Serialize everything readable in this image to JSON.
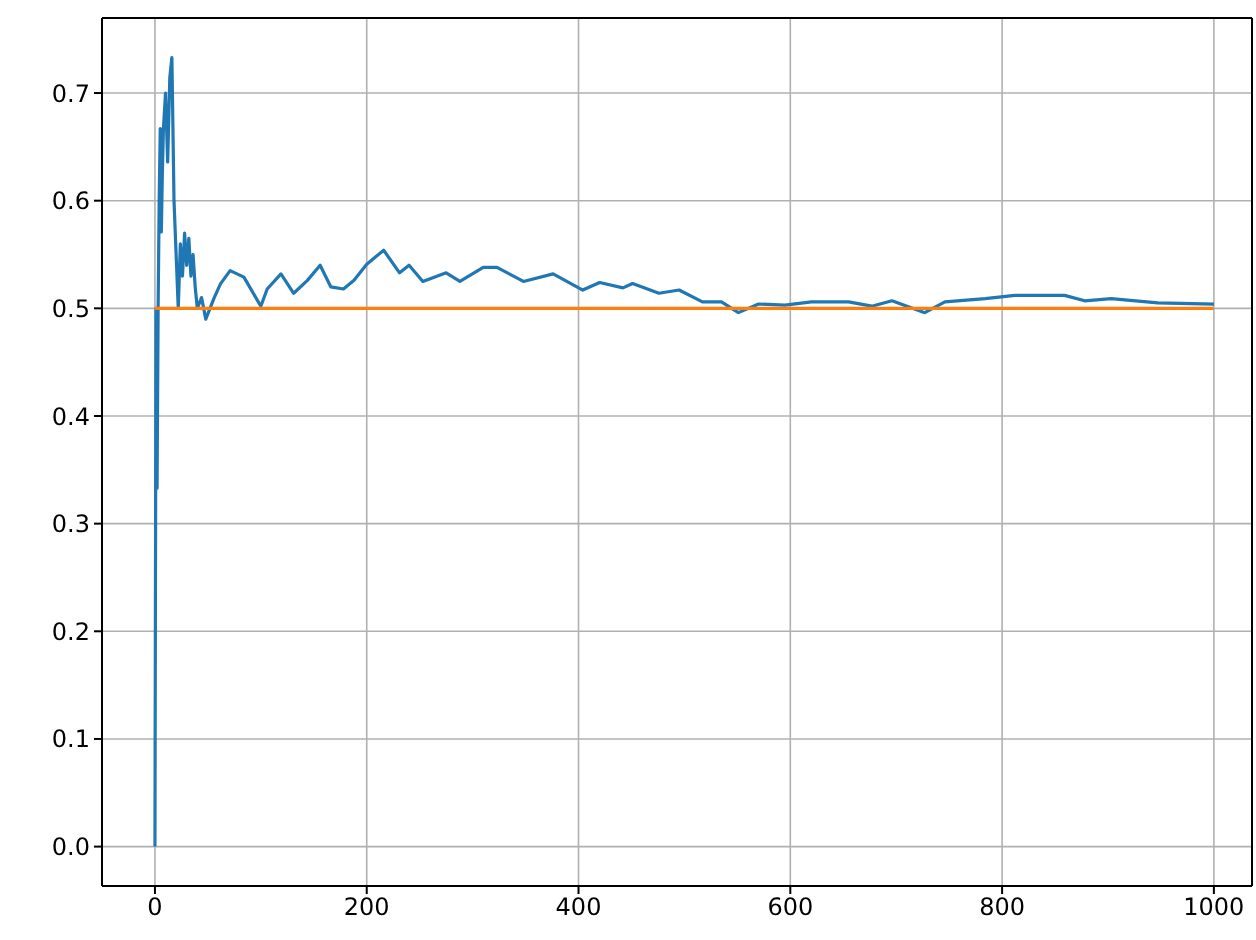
{
  "chart_data": {
    "type": "line",
    "xlim": [
      -50,
      1036
    ],
    "ylim": [
      -0.0366,
      0.7697
    ],
    "xticks": [
      0,
      200,
      400,
      600,
      800,
      1000
    ],
    "yticks": [
      {
        "value": 0,
        "label": "0.0"
      },
      0.1,
      0.2,
      0.3,
      0.4,
      0.5,
      0.6,
      0.7
    ],
    "grid": true,
    "marker": "none",
    "line_style": "solid",
    "series": [
      {
        "color": "#1f77b4",
        "x": [
          0,
          1,
          2,
          3,
          4,
          5,
          6,
          7,
          8,
          10,
          12,
          14,
          16,
          18,
          20,
          22,
          24,
          26,
          28,
          30,
          32,
          34,
          36,
          38,
          40,
          44,
          48,
          52,
          56,
          62,
          71,
          84,
          100,
          106,
          119,
          131,
          144,
          156,
          166,
          178,
          188,
          200,
          216,
          231,
          240,
          253,
          275,
          288,
          310,
          323,
          348,
          376,
          404,
          420,
          442,
          451,
          476,
          495,
          517,
          535,
          551,
          570,
          595,
          620,
          655,
          677,
          696,
          727,
          746,
          784,
          812,
          859,
          878,
          903,
          947,
          1000
        ],
        "values": [
          0,
          0.5,
          0.333,
          0.5,
          0.6,
          0.667,
          0.571,
          0.625,
          0.667,
          0.7,
          0.636,
          0.714,
          0.733,
          0.6,
          0.55,
          0.5,
          0.56,
          0.53,
          0.57,
          0.54,
          0.565,
          0.53,
          0.55,
          0.52,
          0.5,
          0.51,
          0.49,
          0.5,
          0.51,
          0.523,
          0.535,
          0.529,
          0.502,
          0.518,
          0.532,
          0.514,
          0.526,
          0.54,
          0.52,
          0.518,
          0.526,
          0.541,
          0.554,
          0.533,
          0.54,
          0.525,
          0.533,
          0.525,
          0.538,
          0.538,
          0.525,
          0.532,
          0.517,
          0.524,
          0.519,
          0.523,
          0.514,
          0.517,
          0.506,
          0.506,
          0.496,
          0.504,
          0.503,
          0.506,
          0.506,
          0.502,
          0.507,
          0.496,
          0.506,
          0.509,
          0.512,
          0.512,
          0.507,
          0.509,
          0.505,
          0.504
        ]
      },
      {
        "color": "#ff7f0e",
        "x": [
          0,
          1000
        ],
        "values": [
          0.5,
          0.5
        ]
      }
    ]
  }
}
